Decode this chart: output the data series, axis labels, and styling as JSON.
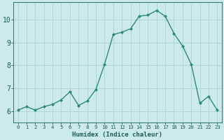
{
  "x": [
    0,
    1,
    2,
    3,
    4,
    5,
    6,
    7,
    8,
    9,
    10,
    11,
    12,
    13,
    14,
    15,
    16,
    17,
    18,
    19,
    20,
    21,
    22,
    23
  ],
  "y": [
    6.05,
    6.2,
    6.05,
    6.2,
    6.3,
    6.5,
    6.85,
    6.25,
    6.45,
    6.95,
    8.05,
    9.35,
    9.45,
    9.6,
    10.15,
    10.2,
    10.4,
    10.15,
    9.4,
    8.85,
    8.05,
    6.35,
    6.65,
    6.05
  ],
  "line_color": "#2e8b74",
  "marker_color": "#2e8b74",
  "bg_color": "#cceae8",
  "grid_color": "#aed8d5",
  "axis_color": "#3d7a70",
  "tick_color": "#1a5c58",
  "xlabel": "Humidex (Indice chaleur)",
  "ylim": [
    5.5,
    10.75
  ],
  "xlim": [
    -0.5,
    23.5
  ],
  "yticks": [
    6,
    7,
    8,
    9,
    10
  ],
  "xticks": [
    0,
    1,
    2,
    3,
    4,
    5,
    6,
    7,
    8,
    9,
    10,
    11,
    12,
    13,
    14,
    15,
    16,
    17,
    18,
    19,
    20,
    21,
    22,
    23
  ],
  "xlabel_fontsize": 6.5,
  "ytick_fontsize": 7,
  "xtick_fontsize": 5.2
}
